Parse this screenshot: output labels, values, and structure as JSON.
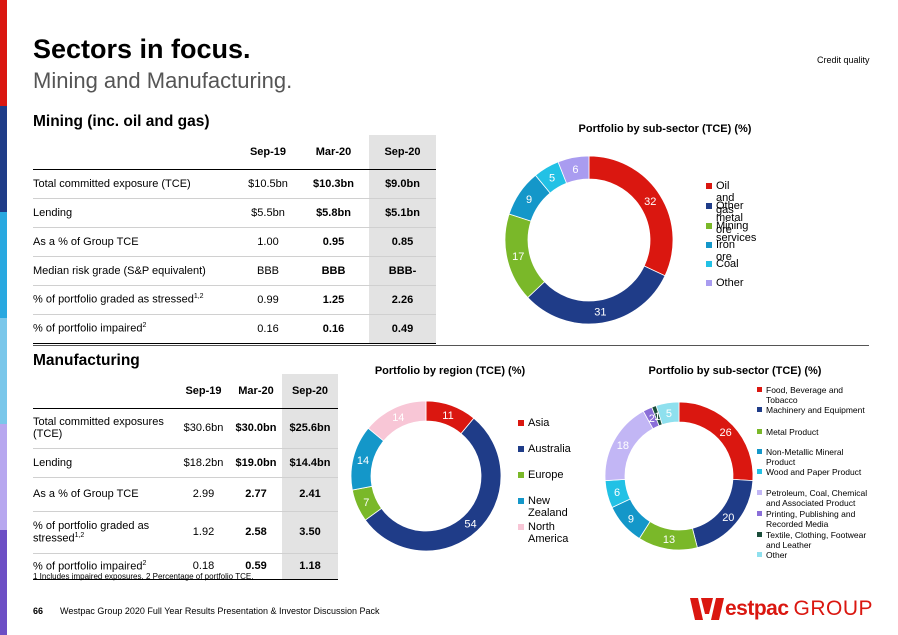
{
  "colors": {
    "side_bar": [
      "#da1710",
      "#1f3c88",
      "#28a8e0",
      "#7ac7ea",
      "#b7a7ef",
      "#6d4fc5"
    ],
    "red": "#da1710",
    "navy": "#1f3c88",
    "green": "#7ab829",
    "teal": "#1497c9",
    "cyan": "#22c1e5",
    "lavender": "#a99cf0",
    "pink": "#f8c6d6",
    "light_lavender": "#c2b6f5",
    "purple": "#8a6ed8",
    "dark_green": "#1b4d3a",
    "pale_cyan": "#8fe0ee"
  },
  "header": {
    "title": "Sectors in focus.",
    "subtitle": "Mining and Manufacturing.",
    "credit_quality": "Credit quality"
  },
  "mining": {
    "heading": "Mining (inc. oil and gas)",
    "columns": [
      "Sep-19",
      "Mar-20",
      "Sep-20"
    ],
    "rows": [
      {
        "label": "Total committed exposure (TCE)",
        "sup": "",
        "v": [
          "$10.5bn",
          "$10.3bn",
          "$9.0bn"
        ]
      },
      {
        "label": "Lending",
        "sup": "",
        "v": [
          "$5.5bn",
          "$5.8bn",
          "$5.1bn"
        ]
      },
      {
        "label": "As a % of Group TCE",
        "sup": "",
        "v": [
          "1.00",
          "0.95",
          "0.85"
        ]
      },
      {
        "label": "Median risk grade (S&P equivalent)",
        "sup": "",
        "v": [
          "BBB",
          "BBB",
          "BBB-"
        ]
      },
      {
        "label": "% of portfolio graded as stressed",
        "sup": "1,2",
        "v": [
          "0.99",
          "1.25",
          "2.26"
        ]
      },
      {
        "label": "% of portfolio impaired",
        "sup": "2",
        "v": [
          "0.16",
          "0.16",
          "0.49"
        ]
      }
    ]
  },
  "manufacturing": {
    "heading": "Manufacturing",
    "columns": [
      "Sep-19",
      "Mar-20",
      "Sep-20"
    ],
    "rows": [
      {
        "label": "Total committed exposures (TCE)",
        "sup": "",
        "v": [
          "$30.6bn",
          "$30.0bn",
          "$25.6bn"
        ]
      },
      {
        "label": "Lending",
        "sup": "",
        "v": [
          "$18.2bn",
          "$19.0bn",
          "$14.4bn"
        ]
      },
      {
        "label": "As  a % of Group TCE",
        "sup": "",
        "v": [
          "2.99",
          "2.77",
          "2.41"
        ]
      },
      {
        "label": "% of portfolio graded as stressed",
        "sup": "1,2",
        "v": [
          "1.92",
          "2.58",
          "3.50"
        ]
      },
      {
        "label": "% of portfolio impaired",
        "sup": "2",
        "v": [
          "0.18",
          "0.59",
          "1.18"
        ]
      }
    ]
  },
  "chart_data": [
    {
      "type": "pie",
      "title": "Portfolio by sub-sector (TCE) (%)",
      "categories": [
        "Oil and gas",
        "Other metal ore",
        "Mining services",
        "Iron ore",
        "Coal",
        "Other"
      ],
      "values": [
        32,
        31,
        17,
        9,
        5,
        6
      ],
      "colors": [
        "#da1710",
        "#1f3c88",
        "#7ab829",
        "#1497c9",
        "#22c1e5",
        "#a99cf0"
      ],
      "legend": "right"
    },
    {
      "type": "pie",
      "title": "Portfolio by region (TCE) (%)",
      "categories": [
        "Asia",
        "Australia",
        "Europe",
        "New Zealand",
        "North America"
      ],
      "values": [
        11,
        54,
        7,
        14,
        14
      ],
      "colors": [
        "#da1710",
        "#1f3c88",
        "#7ab829",
        "#1497c9",
        "#f8c6d6"
      ],
      "legend": "right"
    },
    {
      "type": "pie",
      "title": "Portfolio by sub-sector (TCE) (%)",
      "categories": [
        "Food, Beverage and Tobacco",
        "Machinery and Equipment",
        "Metal Product",
        "Non-Metallic Mineral Product",
        "Wood and Paper Product",
        "Petroleum, Coal, Chemical and Associated Product",
        "Printing, Publishing and Recorded Media",
        "Textile, Clothing, Footwear and Leather",
        "Other"
      ],
      "values": [
        26,
        20,
        13,
        9,
        6,
        18,
        2,
        1,
        5
      ],
      "colors": [
        "#da1710",
        "#1f3c88",
        "#7ab829",
        "#1497c9",
        "#22c1e5",
        "#c2b6f5",
        "#8a6ed8",
        "#1b4d3a",
        "#8fe0ee"
      ],
      "legend": "right"
    }
  ],
  "footnote": "1 Includes impaired exposures. 2 Percentage of portfolio TCE.",
  "footer": {
    "page_number": "66",
    "text": "Westpac Group 2020 Full Year Results Presentation & Investor Discussion Pack",
    "logo_brand": "estpac",
    "logo_group": "GROUP"
  }
}
